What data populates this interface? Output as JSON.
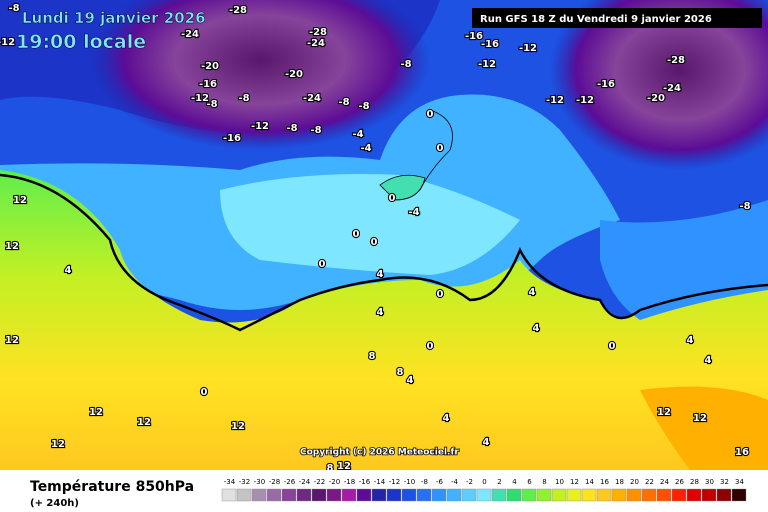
{
  "header": {
    "date": "Lundi 19 janvier 2026",
    "time": "19:00 locale",
    "run": "Run GFS 18 Z du Vendredi 9 janvier 2026"
  },
  "footer": {
    "title": "Température 850hPa",
    "lead": "(+ 240h)",
    "copyright": "Copyright (c) 2026 Meteociel.fr"
  },
  "legend": {
    "ticks": [
      -34,
      -32,
      -30,
      -28,
      -26,
      -24,
      -22,
      -20,
      -18,
      -16,
      -14,
      -12,
      -10,
      -8,
      -6,
      -4,
      -2,
      0,
      2,
      4,
      6,
      8,
      10,
      12,
      14,
      16,
      18,
      20,
      22,
      24,
      26,
      28,
      30,
      32,
      34
    ],
    "colors": [
      "#e0e0e0",
      "#c4c4c4",
      "#a88fb0",
      "#9a6aa4",
      "#86449a",
      "#6e2a80",
      "#5a186c",
      "#7a1888",
      "#a41ca8",
      "#5c0c96",
      "#2424a8",
      "#1c34c8",
      "#1e52e2",
      "#2272f2",
      "#3092ff",
      "#40b2ff",
      "#5ccdfc",
      "#7ee6ff",
      "#44dfb0",
      "#30dc70",
      "#60ee4c",
      "#90f032",
      "#c2f024",
      "#e8f024",
      "#ffe222",
      "#ffc820",
      "#ffb000",
      "#ff9000",
      "#ff7000",
      "#ff5000",
      "#ff2200",
      "#e00000",
      "#c00000",
      "#900000",
      "#300000"
    ]
  },
  "map_labels": [
    -8,
    -12,
    -28,
    -24,
    -28,
    -24,
    -20,
    -16,
    -12,
    -8,
    -8,
    -20,
    -24,
    -8,
    -8,
    -8,
    -16,
    -12,
    -8,
    -8,
    -4,
    -4,
    0,
    0,
    -16,
    -16,
    -12,
    -12,
    -12,
    -12,
    -16,
    -20,
    -24,
    -28,
    -8,
    0,
    -4,
    0,
    0,
    4,
    0,
    4,
    0,
    4,
    0,
    12,
    4,
    0,
    4,
    4,
    8,
    8,
    4,
    0,
    12,
    12,
    12,
    4,
    4,
    12,
    12,
    16,
    8,
    12,
    4,
    12,
    12,
    12
  ]
}
